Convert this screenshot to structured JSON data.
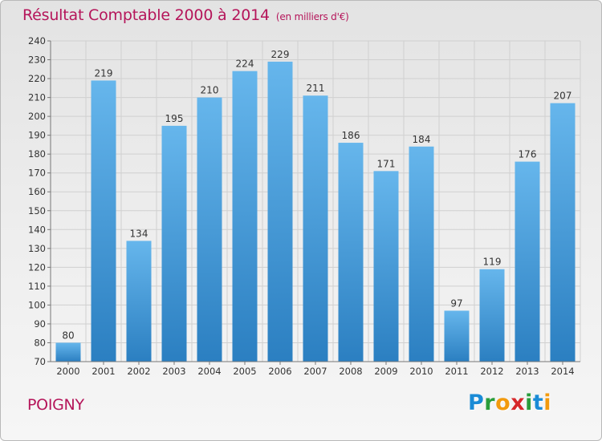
{
  "header": {
    "title": "Résultat Comptable 2000 à 2014",
    "unit": "(en milliers d'€)"
  },
  "footer": {
    "commune": "POIGNY",
    "logo_letters": [
      "P",
      "r",
      "o",
      "x",
      "i",
      "t",
      "i"
    ],
    "logo_colors": [
      "#1a8bd6",
      "#2a9d3b",
      "#f29a0d",
      "#d6282b",
      "#2a9d3b",
      "#1a8bd6",
      "#f29a0d"
    ]
  },
  "colors": {
    "title": "#b5155a",
    "bar_top": "#66b6ec",
    "bar_bottom": "#2b7fc1",
    "grid": "#d0d0d0"
  },
  "chart_data": {
    "type": "bar",
    "title": "Résultat Comptable 2000 à 2014",
    "subtitle": "(en milliers d'€)",
    "categories": [
      "2000",
      "2001",
      "2002",
      "2003",
      "2004",
      "2005",
      "2006",
      "2007",
      "2008",
      "2009",
      "2010",
      "2011",
      "2012",
      "2013",
      "2014"
    ],
    "values": [
      80,
      219,
      134,
      195,
      210,
      224,
      229,
      211,
      186,
      171,
      184,
      97,
      119,
      176,
      207
    ],
    "ylim": [
      70,
      240
    ],
    "yticks": [
      70,
      80,
      90,
      100,
      110,
      120,
      130,
      140,
      150,
      160,
      170,
      180,
      190,
      200,
      210,
      220,
      230,
      240
    ],
    "grid": true,
    "xlabel": "",
    "ylabel": ""
  }
}
